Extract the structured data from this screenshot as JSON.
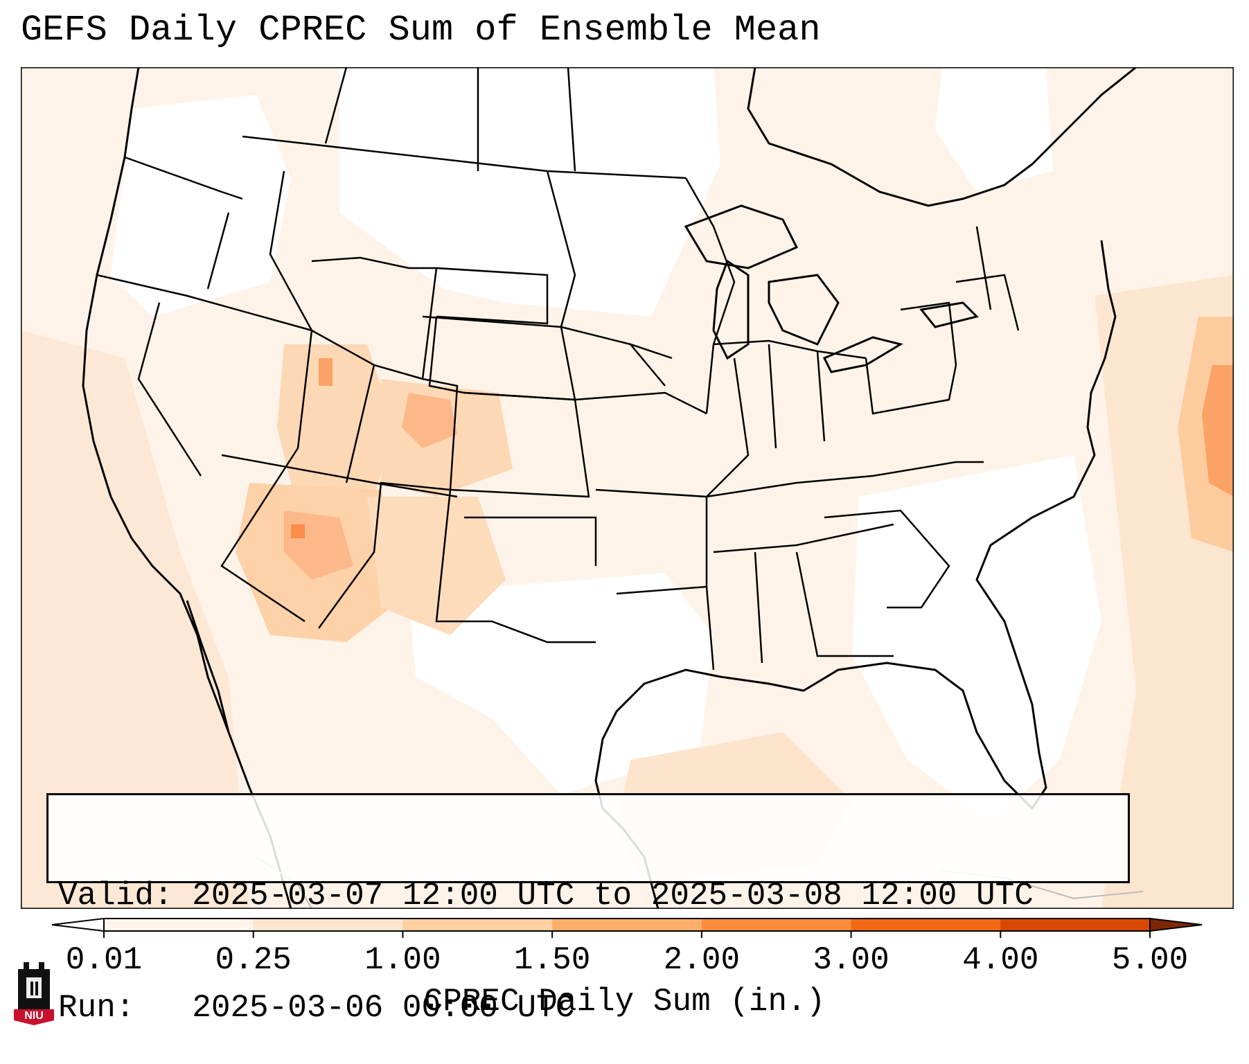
{
  "title": "GEFS Daily CPREC Sum of Ensemble Mean",
  "info": {
    "valid": "Valid: 2025-03-07 12:00 UTC to 2025-03-08 12:00 UTC",
    "run": "Run:   2025-03-06 00:00 UTC"
  },
  "colorbar": {
    "label": "CPREC Daily Sum (in.)",
    "ticks": [
      "0.01",
      "0.25",
      "1.00",
      "1.50",
      "2.00",
      "3.00",
      "4.00",
      "5.00"
    ],
    "colors": [
      "#fff5eb",
      "#fee6ce",
      "#fdd0a2",
      "#fdae6b",
      "#fd8d3c",
      "#f16913",
      "#d94801",
      "#a63603"
    ],
    "under_color": "#ffffff",
    "over_color": "#7f2704"
  },
  "logo": {
    "text": "NIU",
    "color": "#c8102e"
  },
  "map": {
    "region": "Contiguous United States",
    "variable": "CPREC daily sum (in.)",
    "heaviest_area": "Atlantic off the Mid-Atlantic coast",
    "moderate_areas": [
      "Utah",
      "Colorado",
      "Arizona",
      "New Mexico"
    ]
  }
}
